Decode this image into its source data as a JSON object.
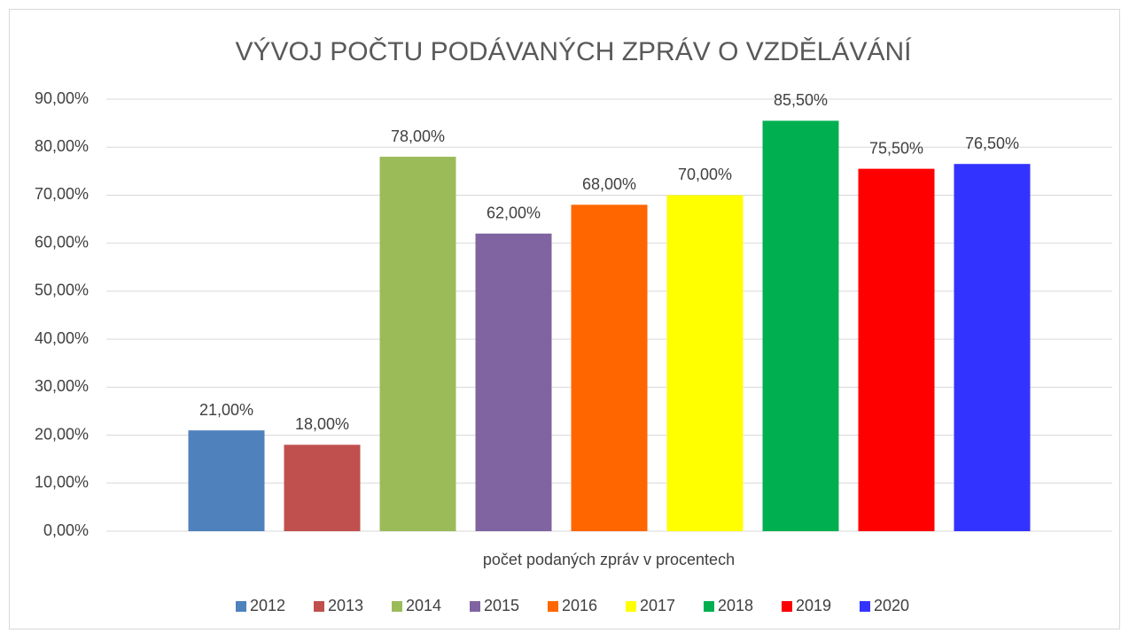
{
  "chart_data": {
    "type": "bar",
    "title": "VÝVOJ POČTU PODÁVANÝCH ZPRÁV O VZDĚLÁVÁNÍ",
    "categories": [
      "počet podaných zpráv v procentech"
    ],
    "series": [
      {
        "name": "2012",
        "color": "#4f81bd",
        "values": [
          21
        ],
        "value_labels": [
          "21,00%"
        ]
      },
      {
        "name": "2013",
        "color": "#c0504d",
        "values": [
          18
        ],
        "value_labels": [
          "18,00%"
        ]
      },
      {
        "name": "2014",
        "color": "#9bbb59",
        "values": [
          78
        ],
        "value_labels": [
          "78,00%"
        ]
      },
      {
        "name": "2015",
        "color": "#8064a2",
        "values": [
          62
        ],
        "value_labels": [
          "62,00%"
        ]
      },
      {
        "name": "2016",
        "color": "#ff6600",
        "values": [
          68
        ],
        "value_labels": [
          "68,00%"
        ]
      },
      {
        "name": "2017",
        "color": "#ffff00",
        "values": [
          70
        ],
        "value_labels": [
          "70,00%"
        ]
      },
      {
        "name": "2018",
        "color": "#00b050",
        "values": [
          85.5
        ],
        "value_labels": [
          "85,50%"
        ]
      },
      {
        "name": "2019",
        "color": "#ff0000",
        "values": [
          75.5
        ],
        "value_labels": [
          "75,50%"
        ]
      },
      {
        "name": "2020",
        "color": "#3333ff",
        "values": [
          76.5
        ],
        "value_labels": [
          "76,50%"
        ]
      }
    ],
    "ylim": [
      0,
      90
    ],
    "yticks": [
      {
        "value": 0,
        "label": "0,00%"
      },
      {
        "value": 10,
        "label": "10,00%"
      },
      {
        "value": 20,
        "label": "20,00%"
      },
      {
        "value": 30,
        "label": "30,00%"
      },
      {
        "value": 40,
        "label": "40,00%"
      },
      {
        "value": 50,
        "label": "50,00%"
      },
      {
        "value": 60,
        "label": "60,00%"
      },
      {
        "value": 70,
        "label": "70,00%"
      },
      {
        "value": 80,
        "label": "80,00%"
      },
      {
        "value": 90,
        "label": "90,00%"
      }
    ],
    "grid": true,
    "legend": "bottom"
  }
}
